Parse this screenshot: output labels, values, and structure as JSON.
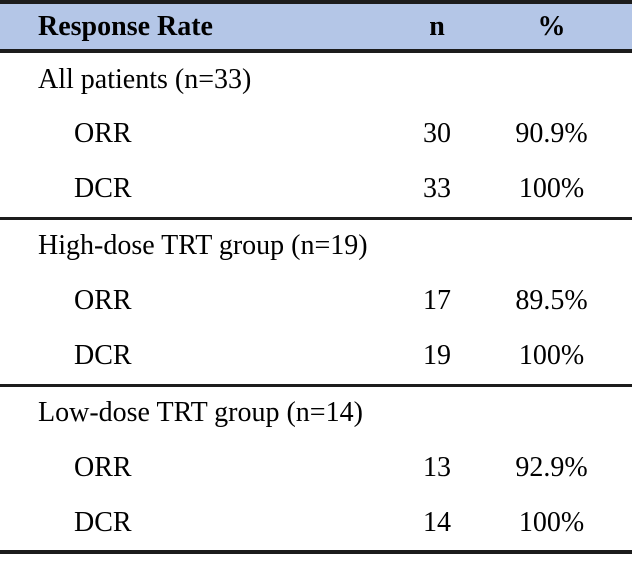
{
  "table": {
    "title": "Response Rate",
    "header": {
      "col1": "Response Rate",
      "col2": "n",
      "col3": "%"
    },
    "sections": [
      {
        "group": "All patients (n=33)",
        "rows": [
          {
            "label": "ORR",
            "n": "30",
            "pct": "90.9%"
          },
          {
            "label": "DCR",
            "n": "33",
            "pct": "100%"
          }
        ]
      },
      {
        "group": "High-dose TRT group (n=19)",
        "rows": [
          {
            "label": "ORR",
            "n": "17",
            "pct": "89.5%"
          },
          {
            "label": "DCR",
            "n": "19",
            "pct": "100%"
          }
        ]
      },
      {
        "group": "Low-dose TRT group (n=14)",
        "rows": [
          {
            "label": "ORR",
            "n": "13",
            "pct": "92.9%"
          },
          {
            "label": "DCR",
            "n": "14",
            "pct": "100%"
          }
        ]
      }
    ],
    "colors": {
      "header_bg": "#B4C6E7",
      "border": "#1c1c1c",
      "text": "#000000"
    }
  }
}
